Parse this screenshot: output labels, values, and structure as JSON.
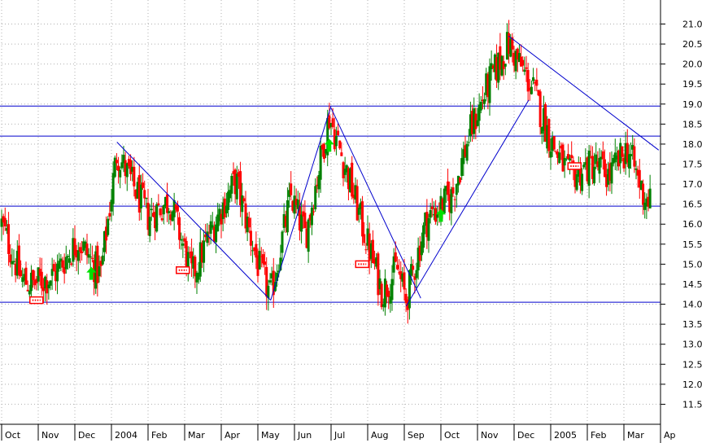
{
  "chart_data": {
    "type": "candlestick",
    "title": "",
    "xlabel": "",
    "ylabel": "",
    "ylim": [
      11.0,
      21.6
    ],
    "y_ticks": [
      "11.5",
      "12.0",
      "12.5",
      "13.0",
      "13.5",
      "14.0",
      "14.5",
      "15.0",
      "15.5",
      "16.0",
      "16.5",
      "17.0",
      "17.5",
      "18.0",
      "18.5",
      "19.0",
      "19.5",
      "20.0",
      "20.5",
      "21.0"
    ],
    "x_ticks": [
      {
        "label": "Oct",
        "t": 0.0
      },
      {
        "label": "Nov",
        "t": 1.0
      },
      {
        "label": "Dec",
        "t": 2.0
      },
      {
        "label": "2004",
        "t": 3.0
      },
      {
        "label": "Feb",
        "t": 4.0
      },
      {
        "label": "Mar",
        "t": 5.0
      },
      {
        "label": "Apr",
        "t": 6.0
      },
      {
        "label": "May",
        "t": 7.0
      },
      {
        "label": "Jun",
        "t": 8.0
      },
      {
        "label": "Jul",
        "t": 9.0
      },
      {
        "label": "Aug",
        "t": 10.0
      },
      {
        "label": "Sep",
        "t": 11.0
      },
      {
        "label": "Oct",
        "t": 12.0
      },
      {
        "label": "Nov",
        "t": 13.0
      },
      {
        "label": "Dec",
        "t": 14.0
      },
      {
        "label": "2005",
        "t": 15.0
      },
      {
        "label": "Feb",
        "t": 16.0
      },
      {
        "label": "Mar",
        "t": 17.0
      },
      {
        "label": "Ap",
        "t": 18.0
      }
    ],
    "grid": true,
    "colors": {
      "up": "#008000",
      "down": "#ff0000",
      "lines": "#0000cd",
      "grid": "#b0b0b0",
      "arrow": "#00e000",
      "marker": "#ff0000"
    },
    "horizontal_levels": [
      14.05,
      16.45,
      18.2,
      18.95
    ],
    "trendlines": [
      {
        "t1": 3.15,
        "y1": 18.05,
        "t2": 7.35,
        "y2": 14.1
      },
      {
        "t1": 7.35,
        "y1": 14.1,
        "t2": 9.0,
        "y2": 18.95
      },
      {
        "t1": 9.0,
        "y1": 18.9,
        "t2": 11.45,
        "y2": 14.15
      },
      {
        "t1": 11.05,
        "y1": 13.95,
        "t2": 14.4,
        "y2": 19.1
      },
      {
        "t1": 13.85,
        "y1": 20.7,
        "t2": 17.95,
        "y2": 17.85
      }
    ],
    "arrows": [
      {
        "t": 2.45,
        "y": 14.75
      },
      {
        "t": 8.95,
        "y": 17.95
      },
      {
        "t": 12.0,
        "y": 16.2
      }
    ],
    "markers": [
      {
        "t": 0.95,
        "y": 14.1
      },
      {
        "t": 4.95,
        "y": 14.85
      },
      {
        "t": 9.85,
        "y": 15.0
      },
      {
        "t": 15.65,
        "y": 17.45
      }
    ],
    "anchors": [
      {
        "t": 0.0,
        "y": 16.0
      },
      {
        "t": 0.55,
        "y": 14.6
      },
      {
        "t": 0.85,
        "y": 14.5
      },
      {
        "t": 1.4,
        "y": 14.7
      },
      {
        "t": 2.1,
        "y": 15.6
      },
      {
        "t": 2.7,
        "y": 14.7
      },
      {
        "t": 3.15,
        "y": 17.8
      },
      {
        "t": 4.0,
        "y": 16.2
      },
      {
        "t": 4.6,
        "y": 16.6
      },
      {
        "t": 5.2,
        "y": 14.7
      },
      {
        "t": 5.9,
        "y": 16.2
      },
      {
        "t": 6.4,
        "y": 17.1
      },
      {
        "t": 7.0,
        "y": 15.0
      },
      {
        "t": 7.35,
        "y": 14.2
      },
      {
        "t": 7.9,
        "y": 16.7
      },
      {
        "t": 8.3,
        "y": 15.7
      },
      {
        "t": 8.95,
        "y": 18.7
      },
      {
        "t": 9.5,
        "y": 17.1
      },
      {
        "t": 10.0,
        "y": 15.5
      },
      {
        "t": 10.4,
        "y": 14.3
      },
      {
        "t": 10.8,
        "y": 14.9
      },
      {
        "t": 11.05,
        "y": 14.1
      },
      {
        "t": 11.6,
        "y": 16.1
      },
      {
        "t": 12.3,
        "y": 16.7
      },
      {
        "t": 12.8,
        "y": 18.3
      },
      {
        "t": 13.3,
        "y": 19.5
      },
      {
        "t": 13.85,
        "y": 20.5
      },
      {
        "t": 14.5,
        "y": 19.4
      },
      {
        "t": 15.0,
        "y": 18.1
      },
      {
        "t": 15.5,
        "y": 17.2
      },
      {
        "t": 16.2,
        "y": 17.5
      },
      {
        "t": 16.6,
        "y": 17.2
      },
      {
        "t": 17.1,
        "y": 17.9
      },
      {
        "t": 17.55,
        "y": 16.7
      },
      {
        "t": 17.75,
        "y": 16.6
      }
    ],
    "bars_per_month": 21
  }
}
